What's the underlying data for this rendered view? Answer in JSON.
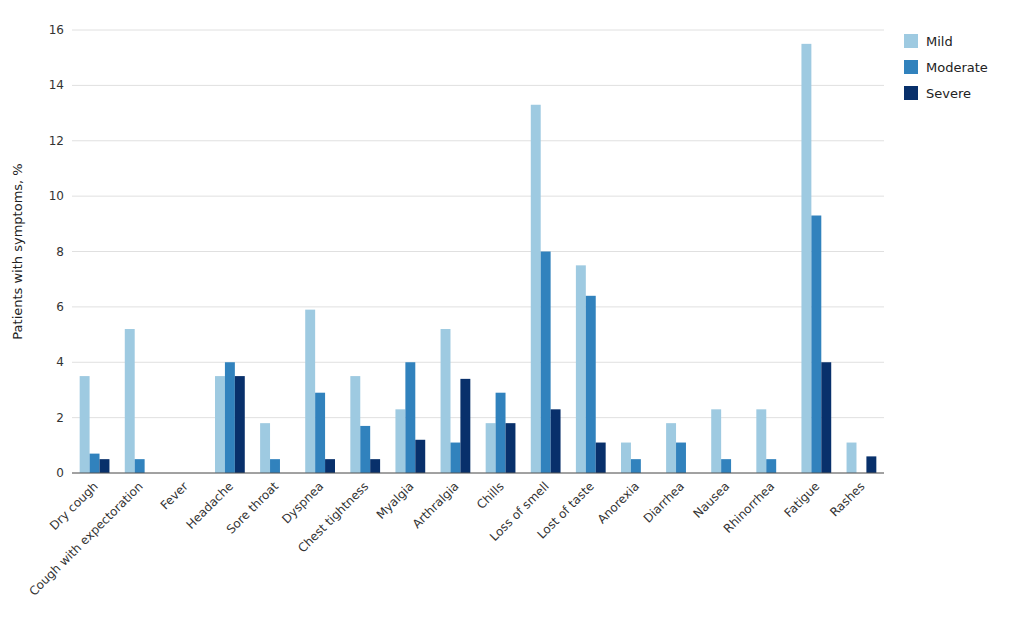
{
  "chart_data": {
    "type": "bar",
    "categories": [
      "Dry cough",
      "Cough with expectoration",
      "Fever",
      "Headache",
      "Sore throat",
      "Dyspnea",
      "Chest tightness",
      "Myalgia",
      "Arthralgia",
      "Chills",
      "Loss of smell",
      "Lost of taste",
      "Anorexia",
      "Diarrhea",
      "Nausea",
      "Rhinorrhea",
      "Fatigue",
      "Rashes"
    ],
    "series": [
      {
        "name": "Mild",
        "color": "#9ecae1",
        "values": [
          3.5,
          5.2,
          0.0,
          3.5,
          1.8,
          5.9,
          3.5,
          2.3,
          5.2,
          1.8,
          13.3,
          7.5,
          1.1,
          1.8,
          2.3,
          2.3,
          15.5,
          1.1
        ]
      },
      {
        "name": "Moderate",
        "color": "#3182bd",
        "values": [
          0.7,
          0.5,
          0.0,
          4.0,
          0.5,
          2.9,
          1.7,
          4.0,
          1.1,
          2.9,
          8.0,
          6.4,
          0.5,
          1.1,
          0.5,
          0.5,
          9.3,
          0.0
        ]
      },
      {
        "name": "Severe",
        "color": "#08306b",
        "values": [
          0.5,
          0.0,
          0.0,
          3.5,
          0.0,
          0.5,
          0.5,
          1.2,
          3.4,
          1.8,
          2.3,
          1.1,
          0.0,
          0.0,
          0.0,
          0.0,
          4.0,
          0.6
        ]
      }
    ],
    "ylabel": "Patients with symptoms, %",
    "ylim": [
      0,
      16
    ],
    "yticks": [
      0,
      2,
      4,
      6,
      8,
      10,
      12,
      14,
      16
    ],
    "grid": true,
    "legend": "right"
  }
}
